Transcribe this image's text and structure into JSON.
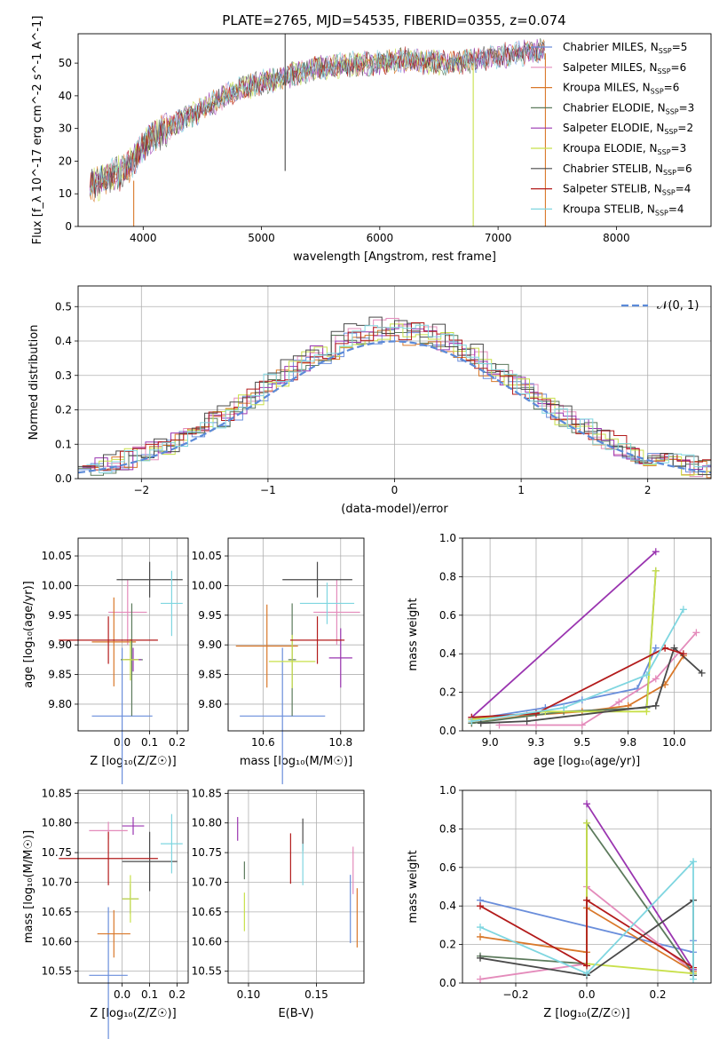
{
  "figure": {
    "title": "PLATE=2765, MJD=54535, FIBERID=0355, z=0.074"
  },
  "colors": {
    "Chabrier MILES": "#6a8edb",
    "Salpeter MILES": "#e48bbb",
    "Kroupa MILES": "#d9782a",
    "Chabrier ELODIE": "#5c7a5c",
    "Salpeter ELODIE": "#9a35b0",
    "Kroupa ELODIE": "#c8e04a",
    "Chabrier STELIB": "#4a4a4a",
    "Salpeter STELIB": "#b31b1b",
    "Kroupa STELIB": "#7fd6e0"
  },
  "chart_data": [
    {
      "id": "spectrum",
      "type": "line",
      "title": "PLATE=2765, MJD=54535, FIBERID=0355, z=0.074",
      "xlabel": "wavelength [Angstrom, rest frame]",
      "ylabel": "Flux [f_λ 10^-17 erg cm^-2 s^-1 A^-1]",
      "xlim": [
        3450,
        8800
      ],
      "ylim": [
        0,
        59
      ],
      "xticks": [
        4000,
        5000,
        6000,
        7000,
        8000
      ],
      "yticks": [
        0,
        10,
        20,
        30,
        40,
        50
      ],
      "grid": false,
      "legend_position": "lower-right",
      "legend": [
        {
          "model": "Chabrier MILES",
          "label": "Chabrier MILES, N",
          "sub": "SSP",
          "n": "5"
        },
        {
          "model": "Salpeter MILES",
          "label": "Salpeter MILES, N",
          "sub": "SSP",
          "n": "6"
        },
        {
          "model": "Kroupa MILES",
          "label": "Kroupa MILES, N",
          "sub": "SSP",
          "n": "6"
        },
        {
          "model": "Chabrier ELODIE",
          "label": "Chabrier ELODIE, N",
          "sub": "SSP",
          "n": "3"
        },
        {
          "model": "Salpeter ELODIE",
          "label": "Salpeter ELODIE, N",
          "sub": "SSP",
          "n": "2"
        },
        {
          "model": "Kroupa ELODIE",
          "label": "Kroupa ELODIE, N",
          "sub": "SSP",
          "n": "3"
        },
        {
          "model": "Chabrier STELIB",
          "label": "Chabrier STELIB, N",
          "sub": "SSP",
          "n": "6"
        },
        {
          "model": "Salpeter STELIB",
          "label": "Salpeter STELIB, N",
          "sub": "SSP",
          "n": "4"
        },
        {
          "model": "Kroupa STELIB",
          "label": "Kroupa STELIB, N",
          "sub": "SSP",
          "n": "4"
        }
      ],
      "continuum": {
        "x": [
          3550,
          3700,
          3850,
          3950,
          4050,
          4200,
          4400,
          4600,
          4800,
          5000,
          5200,
          5400,
          5600,
          5800,
          6000,
          6200,
          6400,
          6600,
          6800,
          7000,
          7200,
          7400,
          7600,
          7800,
          8000,
          8200,
          8400,
          8750
        ],
        "y": [
          12,
          15,
          17,
          22,
          27,
          30,
          34,
          38,
          42,
          44,
          46,
          48,
          49,
          50,
          50,
          51,
          50.5,
          50,
          51,
          52,
          53,
          54,
          56,
          55,
          54,
          53,
          52,
          51
        ]
      },
      "spikes": [
        {
          "model": "Chabrier STELIB",
          "x": 5200,
          "y_from": 17,
          "y_to": 59
        },
        {
          "model": "Kroupa MILES",
          "x": 3920,
          "y_from": 0,
          "y_to": 14
        },
        {
          "model": "Kroupa ELODIE",
          "x": 6790,
          "y_from": 0,
          "y_to": 50
        },
        {
          "model": "Kroupa MILES",
          "x": 7400,
          "y_from": 0,
          "y_to": 53
        }
      ]
    },
    {
      "id": "residuals",
      "type": "line",
      "xlabel": "(data-model)/error",
      "ylabel": "Normed distribution",
      "xlim": [
        -2.5,
        2.5
      ],
      "ylim": [
        0,
        0.56
      ],
      "xticks": [
        -2,
        -1,
        0,
        1,
        2
      ],
      "yticks": [
        0.0,
        0.1,
        0.2,
        0.3,
        0.4,
        0.5
      ],
      "grid": true,
      "legend_position": "top-right",
      "legend_label": "𝒩(0, 1)",
      "normal_color": "#5b8ad8",
      "bin_width": 0.1,
      "series_gaussian_amplitude": {
        "Chabrier MILES": 0.41,
        "Salpeter MILES": 0.43,
        "Kroupa MILES": 0.41,
        "Chabrier ELODIE": 0.42,
        "Salpeter ELODIE": 0.42,
        "Kroupa ELODIE": 0.42,
        "Chabrier STELIB": 0.44,
        "Salpeter STELIB": 0.42,
        "Kroupa STELIB": 0.43
      }
    },
    {
      "id": "age-Z",
      "type": "scatter",
      "xlabel": "Z [log₁₀(Z/Z☉)]",
      "ylabel": "age  [log₁₀(age/yr)]",
      "xlim": [
        -0.16,
        0.24
      ],
      "ylim": [
        9.755,
        10.08
      ],
      "xticks": [
        0.0,
        0.1,
        0.2
      ],
      "yticks": [
        9.8,
        9.85,
        9.9,
        9.95,
        10.0,
        10.05
      ],
      "grid": true,
      "points": [
        {
          "model": "Chabrier MILES",
          "x": 0.0,
          "xerr": 0.11,
          "y": 9.78,
          "yerr": 0.23
        },
        {
          "model": "Salpeter MILES",
          "x": 0.02,
          "xerr": 0.07,
          "y": 9.955,
          "yerr": 0.11
        },
        {
          "model": "Kroupa MILES",
          "x": -0.03,
          "xerr": 0.08,
          "y": 9.905,
          "yerr": 0.15
        },
        {
          "model": "Chabrier ELODIE",
          "x": 0.035,
          "xerr": 0.04,
          "y": 9.875,
          "yerr": 0.19
        },
        {
          "model": "Salpeter ELODIE",
          "x": 0.04,
          "xerr": 0.03,
          "y": 9.875,
          "yerr": 0.04
        },
        {
          "model": "Kroupa ELODIE",
          "x": 0.03,
          "xerr": 0.03,
          "y": 9.875,
          "yerr": 0.07
        },
        {
          "model": "Chabrier STELIB",
          "x": 0.1,
          "xerr": 0.12,
          "y": 10.01,
          "yerr": 0.06
        },
        {
          "model": "Salpeter STELIB",
          "x": -0.05,
          "xerr": 0.18,
          "y": 9.908,
          "yerr": 0.08
        },
        {
          "model": "Kroupa STELIB",
          "x": 0.18,
          "xerr": 0.04,
          "y": 9.97,
          "yerr": 0.11
        }
      ]
    },
    {
      "id": "age-mass",
      "type": "scatter",
      "xlabel": "mass [log₁₀(M/M☉)]",
      "ylabel": "",
      "xlim": [
        10.51,
        10.86
      ],
      "ylim": [
        9.755,
        10.08
      ],
      "xticks": [
        10.6,
        10.8
      ],
      "yticks": [
        9.8,
        9.85,
        9.9,
        9.95,
        10.0,
        10.05
      ],
      "grid": true,
      "points": [
        {
          "model": "Chabrier MILES",
          "x": 10.65,
          "xerr": 0.11,
          "y": 9.78,
          "yerr": 0.23
        },
        {
          "model": "Salpeter MILES",
          "x": 10.79,
          "xerr": 0.06,
          "y": 9.955,
          "yerr": 0.11
        },
        {
          "model": "Kroupa MILES",
          "x": 10.61,
          "xerr": 0.08,
          "y": 9.898,
          "yerr": 0.14
        },
        {
          "model": "Chabrier ELODIE",
          "x": 10.675,
          "xerr": 0.01,
          "y": 9.875,
          "yerr": 0.19
        },
        {
          "model": "Salpeter ELODIE",
          "x": 10.8,
          "xerr": 0.03,
          "y": 9.878,
          "yerr": 0.1
        },
        {
          "model": "Kroupa ELODIE",
          "x": 10.675,
          "xerr": 0.06,
          "y": 9.872,
          "yerr": 0.09
        },
        {
          "model": "Chabrier STELIB",
          "x": 10.74,
          "xerr": 0.09,
          "y": 10.01,
          "yerr": 0.06
        },
        {
          "model": "Salpeter STELIB",
          "x": 10.74,
          "xerr": 0.07,
          "y": 9.908,
          "yerr": 0.08
        },
        {
          "model": "Kroupa STELIB",
          "x": 10.765,
          "xerr": 0.07,
          "y": 9.97,
          "yerr": 0.07
        }
      ]
    },
    {
      "id": "massweight-age",
      "type": "line",
      "xlabel": "age  [log₁₀(age/yr)]",
      "ylabel": "mass weight",
      "xlim": [
        8.85,
        10.2
      ],
      "ylim": [
        0,
        1.0
      ],
      "xticks": [
        9.0,
        9.25,
        9.5,
        9.75,
        10.0
      ],
      "yticks": [
        0.0,
        0.2,
        0.4,
        0.6,
        0.8,
        1.0
      ],
      "grid": true,
      "series": [
        {
          "model": "Chabrier MILES",
          "x": [
            8.9,
            9.3,
            9.5,
            9.8,
            9.9
          ],
          "y": [
            0.06,
            0.12,
            0.16,
            0.22,
            0.43
          ]
        },
        {
          "model": "Salpeter MILES",
          "x": [
            9.05,
            9.25,
            9.5,
            9.7,
            9.9,
            10.12
          ],
          "y": [
            0.03,
            0.03,
            0.03,
            0.15,
            0.27,
            0.51
          ]
        },
        {
          "model": "Kroupa MILES",
          "x": [
            8.9,
            9.2,
            9.5,
            9.75,
            9.95,
            10.05
          ],
          "y": [
            0.04,
            0.08,
            0.1,
            0.13,
            0.24,
            0.39
          ]
        },
        {
          "model": "Chabrier ELODIE",
          "x": [
            8.9,
            9.4,
            9.85,
            9.9
          ],
          "y": [
            0.04,
            0.1,
            0.12,
            0.83
          ]
        },
        {
          "model": "Salpeter ELODIE",
          "x": [
            8.9,
            9.9
          ],
          "y": [
            0.07,
            0.93
          ]
        },
        {
          "model": "Kroupa ELODIE",
          "x": [
            8.9,
            9.3,
            9.85,
            9.9
          ],
          "y": [
            0.06,
            0.1,
            0.1,
            0.83
          ]
        },
        {
          "model": "Chabrier STELIB",
          "x": [
            8.95,
            9.2,
            9.9,
            10.0,
            10.15
          ],
          "y": [
            0.04,
            0.05,
            0.13,
            0.43,
            0.3
          ]
        },
        {
          "model": "Salpeter STELIB",
          "x": [
            8.9,
            9.25,
            9.95,
            10.05
          ],
          "y": [
            0.07,
            0.09,
            0.43,
            0.4
          ]
        },
        {
          "model": "Kroupa STELIB",
          "x": [
            8.9,
            9.4,
            9.85,
            10.05
          ],
          "y": [
            0.05,
            0.12,
            0.29,
            0.63
          ]
        }
      ]
    },
    {
      "id": "mass-Z",
      "type": "scatter",
      "xlabel": "Z [log₁₀(Z/Z☉)]",
      "ylabel": "mass [log₁₀(M/M☉)]",
      "xlim": [
        -0.16,
        0.24
      ],
      "ylim": [
        10.53,
        10.855
      ],
      "xticks": [
        0.0,
        0.1,
        0.2
      ],
      "yticks": [
        10.55,
        10.6,
        10.65,
        10.7,
        10.75,
        10.8,
        10.85
      ],
      "grid": true,
      "points": [
        {
          "model": "Chabrier MILES",
          "x": -0.05,
          "xerr": 0.07,
          "y": 10.543,
          "yerr": 0.23
        },
        {
          "model": "Salpeter MILES",
          "x": -0.05,
          "xerr": 0.07,
          "y": 10.787,
          "yerr": 0.03
        },
        {
          "model": "Kroupa MILES",
          "x": -0.03,
          "xerr": 0.06,
          "y": 10.613,
          "yerr": 0.08
        },
        {
          "model": "Chabrier ELODIE",
          "x": 0.03,
          "xerr": 0.03,
          "y": 10.672,
          "yerr": 0.05
        },
        {
          "model": "Salpeter ELODIE",
          "x": 0.04,
          "xerr": 0.04,
          "y": 10.795,
          "yerr": 0.03
        },
        {
          "model": "Kroupa ELODIE",
          "x": 0.03,
          "xerr": 0.03,
          "y": 10.672,
          "yerr": 0.08
        },
        {
          "model": "Chabrier STELIB",
          "x": 0.1,
          "xerr": 0.1,
          "y": 10.735,
          "yerr": 0.1
        },
        {
          "model": "Salpeter STELIB",
          "x": -0.05,
          "xerr": 0.18,
          "y": 10.74,
          "yerr": 0.09
        },
        {
          "model": "Kroupa STELIB",
          "x": 0.18,
          "xerr": 0.04,
          "y": 10.765,
          "yerr": 0.1
        }
      ]
    },
    {
      "id": "mass-EBV",
      "type": "scatter",
      "xlabel": "E(B-V)",
      "ylabel": "",
      "xlim": [
        0.085,
        0.185
      ],
      "ylim": [
        10.53,
        10.855
      ],
      "xticks": [
        0.1,
        0.15
      ],
      "yticks": [
        10.55,
        10.6,
        10.65,
        10.7,
        10.75,
        10.8,
        10.85
      ],
      "grid": true,
      "points": [
        {
          "model": "Chabrier MILES",
          "x": 0.175,
          "y": 10.655,
          "yerr": 0.115
        },
        {
          "model": "Salpeter MILES",
          "x": 0.177,
          "y": 10.72,
          "yerr": 0.08
        },
        {
          "model": "Kroupa MILES",
          "x": 0.18,
          "y": 10.64,
          "yerr": 0.1
        },
        {
          "model": "Chabrier ELODIE",
          "x": 0.097,
          "y": 10.72,
          "yerr": 0.03
        },
        {
          "model": "Salpeter ELODIE",
          "x": 0.092,
          "y": 10.79,
          "yerr": 0.04
        },
        {
          "model": "Kroupa ELODIE",
          "x": 0.097,
          "y": 10.65,
          "yerr": 0.065
        },
        {
          "model": "Chabrier STELIB",
          "x": 0.14,
          "y": 10.78,
          "yerr": 0.055
        },
        {
          "model": "Salpeter STELIB",
          "x": 0.131,
          "y": 10.74,
          "yerr": 0.085
        },
        {
          "model": "Kroupa STELIB",
          "x": 0.14,
          "y": 10.73,
          "yerr": 0.07
        }
      ]
    },
    {
      "id": "massweight-Z",
      "type": "line",
      "xlabel": "Z [log₁₀(Z/Z☉)]",
      "ylabel": "mass weight",
      "xlim": [
        -0.35,
        0.35
      ],
      "ylim": [
        0,
        1.0
      ],
      "xticks": [
        -0.2,
        0.0,
        0.2
      ],
      "yticks": [
        0.0,
        0.2,
        0.4,
        0.6,
        0.8,
        1.0
      ],
      "grid": true,
      "series": [
        {
          "model": "Chabrier MILES",
          "x": [
            -0.3,
            0.3,
            0.3
          ],
          "y": [
            0.43,
            0.16,
            0.22
          ]
        },
        {
          "model": "Salpeter MILES",
          "x": [
            -0.3,
            0.0,
            0.0,
            0.3
          ],
          "y": [
            0.02,
            0.1,
            0.5,
            0.06
          ]
        },
        {
          "model": "Kroupa MILES",
          "x": [
            -0.3,
            0.0,
            0.0,
            0.3
          ],
          "y": [
            0.24,
            0.16,
            0.39,
            0.06
          ]
        },
        {
          "model": "Chabrier ELODIE",
          "x": [
            -0.3,
            0.0,
            0.0,
            0.3
          ],
          "y": [
            0.14,
            0.1,
            0.83,
            0.05
          ]
        },
        {
          "model": "Salpeter ELODIE",
          "x": [
            0.0,
            0.3
          ],
          "y": [
            0.93,
            0.07
          ]
        },
        {
          "model": "Kroupa ELODIE",
          "x": [
            0.0,
            0.0,
            0.3
          ],
          "y": [
            0.83,
            0.1,
            0.05
          ]
        },
        {
          "model": "Chabrier STELIB",
          "x": [
            -0.3,
            0.0,
            0.3,
            0.3
          ],
          "y": [
            0.13,
            0.04,
            0.43,
            0.04
          ]
        },
        {
          "model": "Salpeter STELIB",
          "x": [
            -0.3,
            0.0,
            0.0,
            0.3
          ],
          "y": [
            0.4,
            0.09,
            0.43,
            0.08
          ]
        },
        {
          "model": "Kroupa STELIB",
          "x": [
            -0.3,
            0.0,
            0.3,
            0.3
          ],
          "y": [
            0.29,
            0.05,
            0.63,
            0.02
          ]
        }
      ]
    }
  ]
}
